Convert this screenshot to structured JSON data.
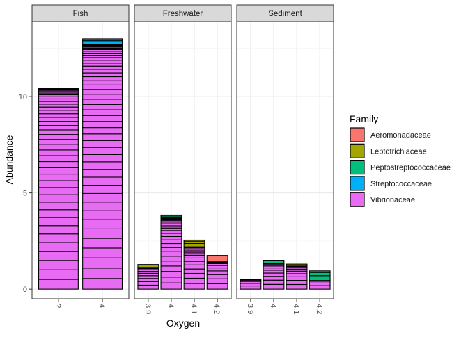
{
  "chart_data": {
    "type": "bar",
    "stacked": true,
    "xlabel": "Oxygen",
    "ylabel": "Abundance",
    "y_ticks": [
      0,
      5,
      10
    ],
    "ylim": [
      -0.5,
      13.9
    ],
    "grid": true,
    "legend_position": "right",
    "legend": {
      "title": "Family",
      "entries": [
        {
          "name": "Aeromonadaceae",
          "color": "#F8766D"
        },
        {
          "name": "Leptotrichiaceae",
          "color": "#A3A500"
        },
        {
          "name": "Peptostreptococcaceae",
          "color": "#00BF7D"
        },
        {
          "name": "Streptococcaceae",
          "color": "#00B0F6"
        },
        {
          "name": "Vibrionaceae",
          "color": "#E76BF3"
        }
      ]
    },
    "facets": [
      {
        "name": "Fish",
        "categories": [
          "?",
          "4"
        ],
        "bars": [
          {
            "x": "?",
            "total": 10.45,
            "segments": [
              {
                "family": "Vibrionaceae",
                "value": 10.45,
                "pieces": 40
              }
            ]
          },
          {
            "x": "4",
            "total": 13.0,
            "segments": [
              {
                "family": "Vibrionaceae",
                "value": 12.7,
                "pieces": 45
              },
              {
                "family": "Streptococcaceae",
                "value": 0.3,
                "pieces": 2
              }
            ]
          }
        ]
      },
      {
        "name": "Freshwater",
        "categories": [
          "3.9",
          "4",
          "4.1",
          "4.2"
        ],
        "bars": [
          {
            "x": "3.9",
            "total": 1.28,
            "segments": [
              {
                "family": "Vibrionaceae",
                "value": 1.13,
                "pieces": 10
              },
              {
                "family": "Leptotrichiaceae",
                "value": 0.15,
                "pieces": 1
              }
            ]
          },
          {
            "x": "4",
            "total": 3.85,
            "segments": [
              {
                "family": "Vibrionaceae",
                "value": 3.7,
                "pieces": 22
              },
              {
                "family": "Peptostreptococcaceae",
                "value": 0.15,
                "pieces": 2
              }
            ]
          },
          {
            "x": "4.1",
            "total": 2.55,
            "segments": [
              {
                "family": "Vibrionaceae",
                "value": 2.2,
                "pieces": 14
              },
              {
                "family": "Leptotrichiaceae",
                "value": 0.35,
                "pieces": 3
              }
            ]
          },
          {
            "x": "4.2",
            "total": 1.75,
            "segments": [
              {
                "family": "Vibrionaceae",
                "value": 1.42,
                "pieces": 9
              },
              {
                "family": "Aeromonadaceae",
                "value": 0.33,
                "pieces": 1
              }
            ]
          }
        ]
      },
      {
        "name": "Sediment",
        "categories": [
          "3.9",
          "4",
          "4.1",
          "4.2"
        ],
        "bars": [
          {
            "x": "3.9",
            "total": 0.5,
            "segments": [
              {
                "family": "Vibrionaceae",
                "value": 0.5,
                "pieces": 5
              }
            ]
          },
          {
            "x": "4",
            "total": 1.5,
            "segments": [
              {
                "family": "Vibrionaceae",
                "value": 1.35,
                "pieces": 10
              },
              {
                "family": "Peptostreptococcaceae",
                "value": 0.15,
                "pieces": 1
              }
            ]
          },
          {
            "x": "4.1",
            "total": 1.3,
            "segments": [
              {
                "family": "Vibrionaceae",
                "value": 1.2,
                "pieces": 9
              },
              {
                "family": "Leptotrichiaceae",
                "value": 0.1,
                "pieces": 1
              }
            ]
          },
          {
            "x": "4.2",
            "total": 0.95,
            "segments": [
              {
                "family": "Vibrionaceae",
                "value": 0.45,
                "pieces": 4
              },
              {
                "family": "Peptostreptococcaceae",
                "value": 0.5,
                "pieces": 3
              }
            ]
          }
        ]
      }
    ]
  }
}
